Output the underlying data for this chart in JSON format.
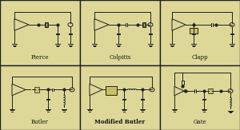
{
  "bg_color": "#ddd898",
  "outer_bg": "#b8a860",
  "border_color": "#222222",
  "line_color": "#222222",
  "label_color": "#111111",
  "ground_color": "#222222",
  "labels": [
    "Pierce",
    "Colpitts",
    "Clapp",
    "Butler",
    "Modified Butler",
    "Gate"
  ],
  "label_bold": [
    false,
    false,
    false,
    false,
    true,
    false
  ],
  "fig_width": 3.0,
  "fig_height": 1.63,
  "dpi": 100
}
